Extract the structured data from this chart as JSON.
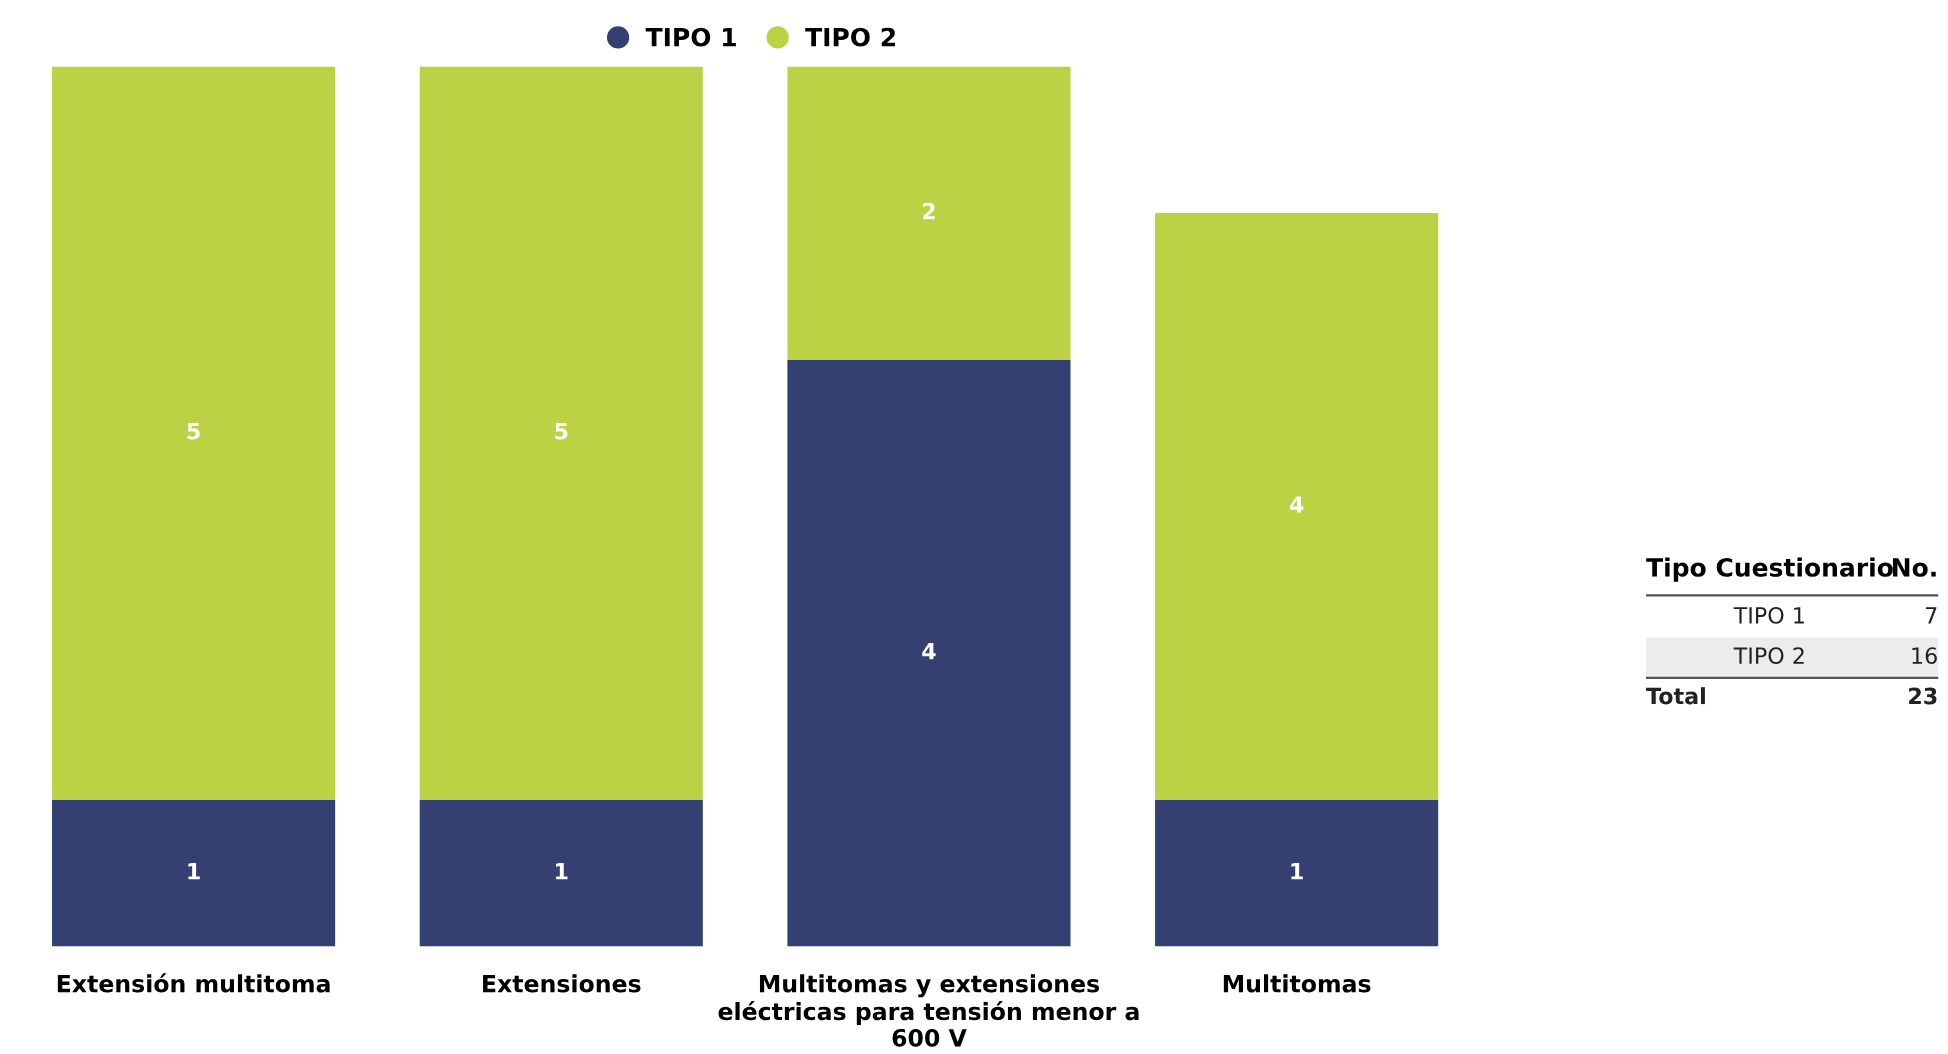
{
  "chart_data": [
    {
      "type": "bar",
      "stacked": true,
      "data_labels": true,
      "legend": "top",
      "categories": [
        "Extensión multitoma",
        "Extensiones",
        "Multitomas y extensiones eléctricas para tensión menor a 600 V",
        "Multitomas"
      ],
      "series": [
        {
          "name": "TIPO 1",
          "color": "#343f72",
          "values": [
            1,
            1,
            4,
            1
          ]
        },
        {
          "name": "TIPO 2",
          "color": "#bcd143",
          "values": [
            5,
            5,
            2,
            4
          ]
        }
      ]
    },
    {
      "type": "other",
      "annotations": [
        "Tipo Cuestionario",
        "No."
      ],
      "categories": [
        "TIPO 1",
        "TIPO 2",
        "Total"
      ],
      "values": [
        7,
        16,
        23
      ],
      "data_labels": true
    }
  ]
}
